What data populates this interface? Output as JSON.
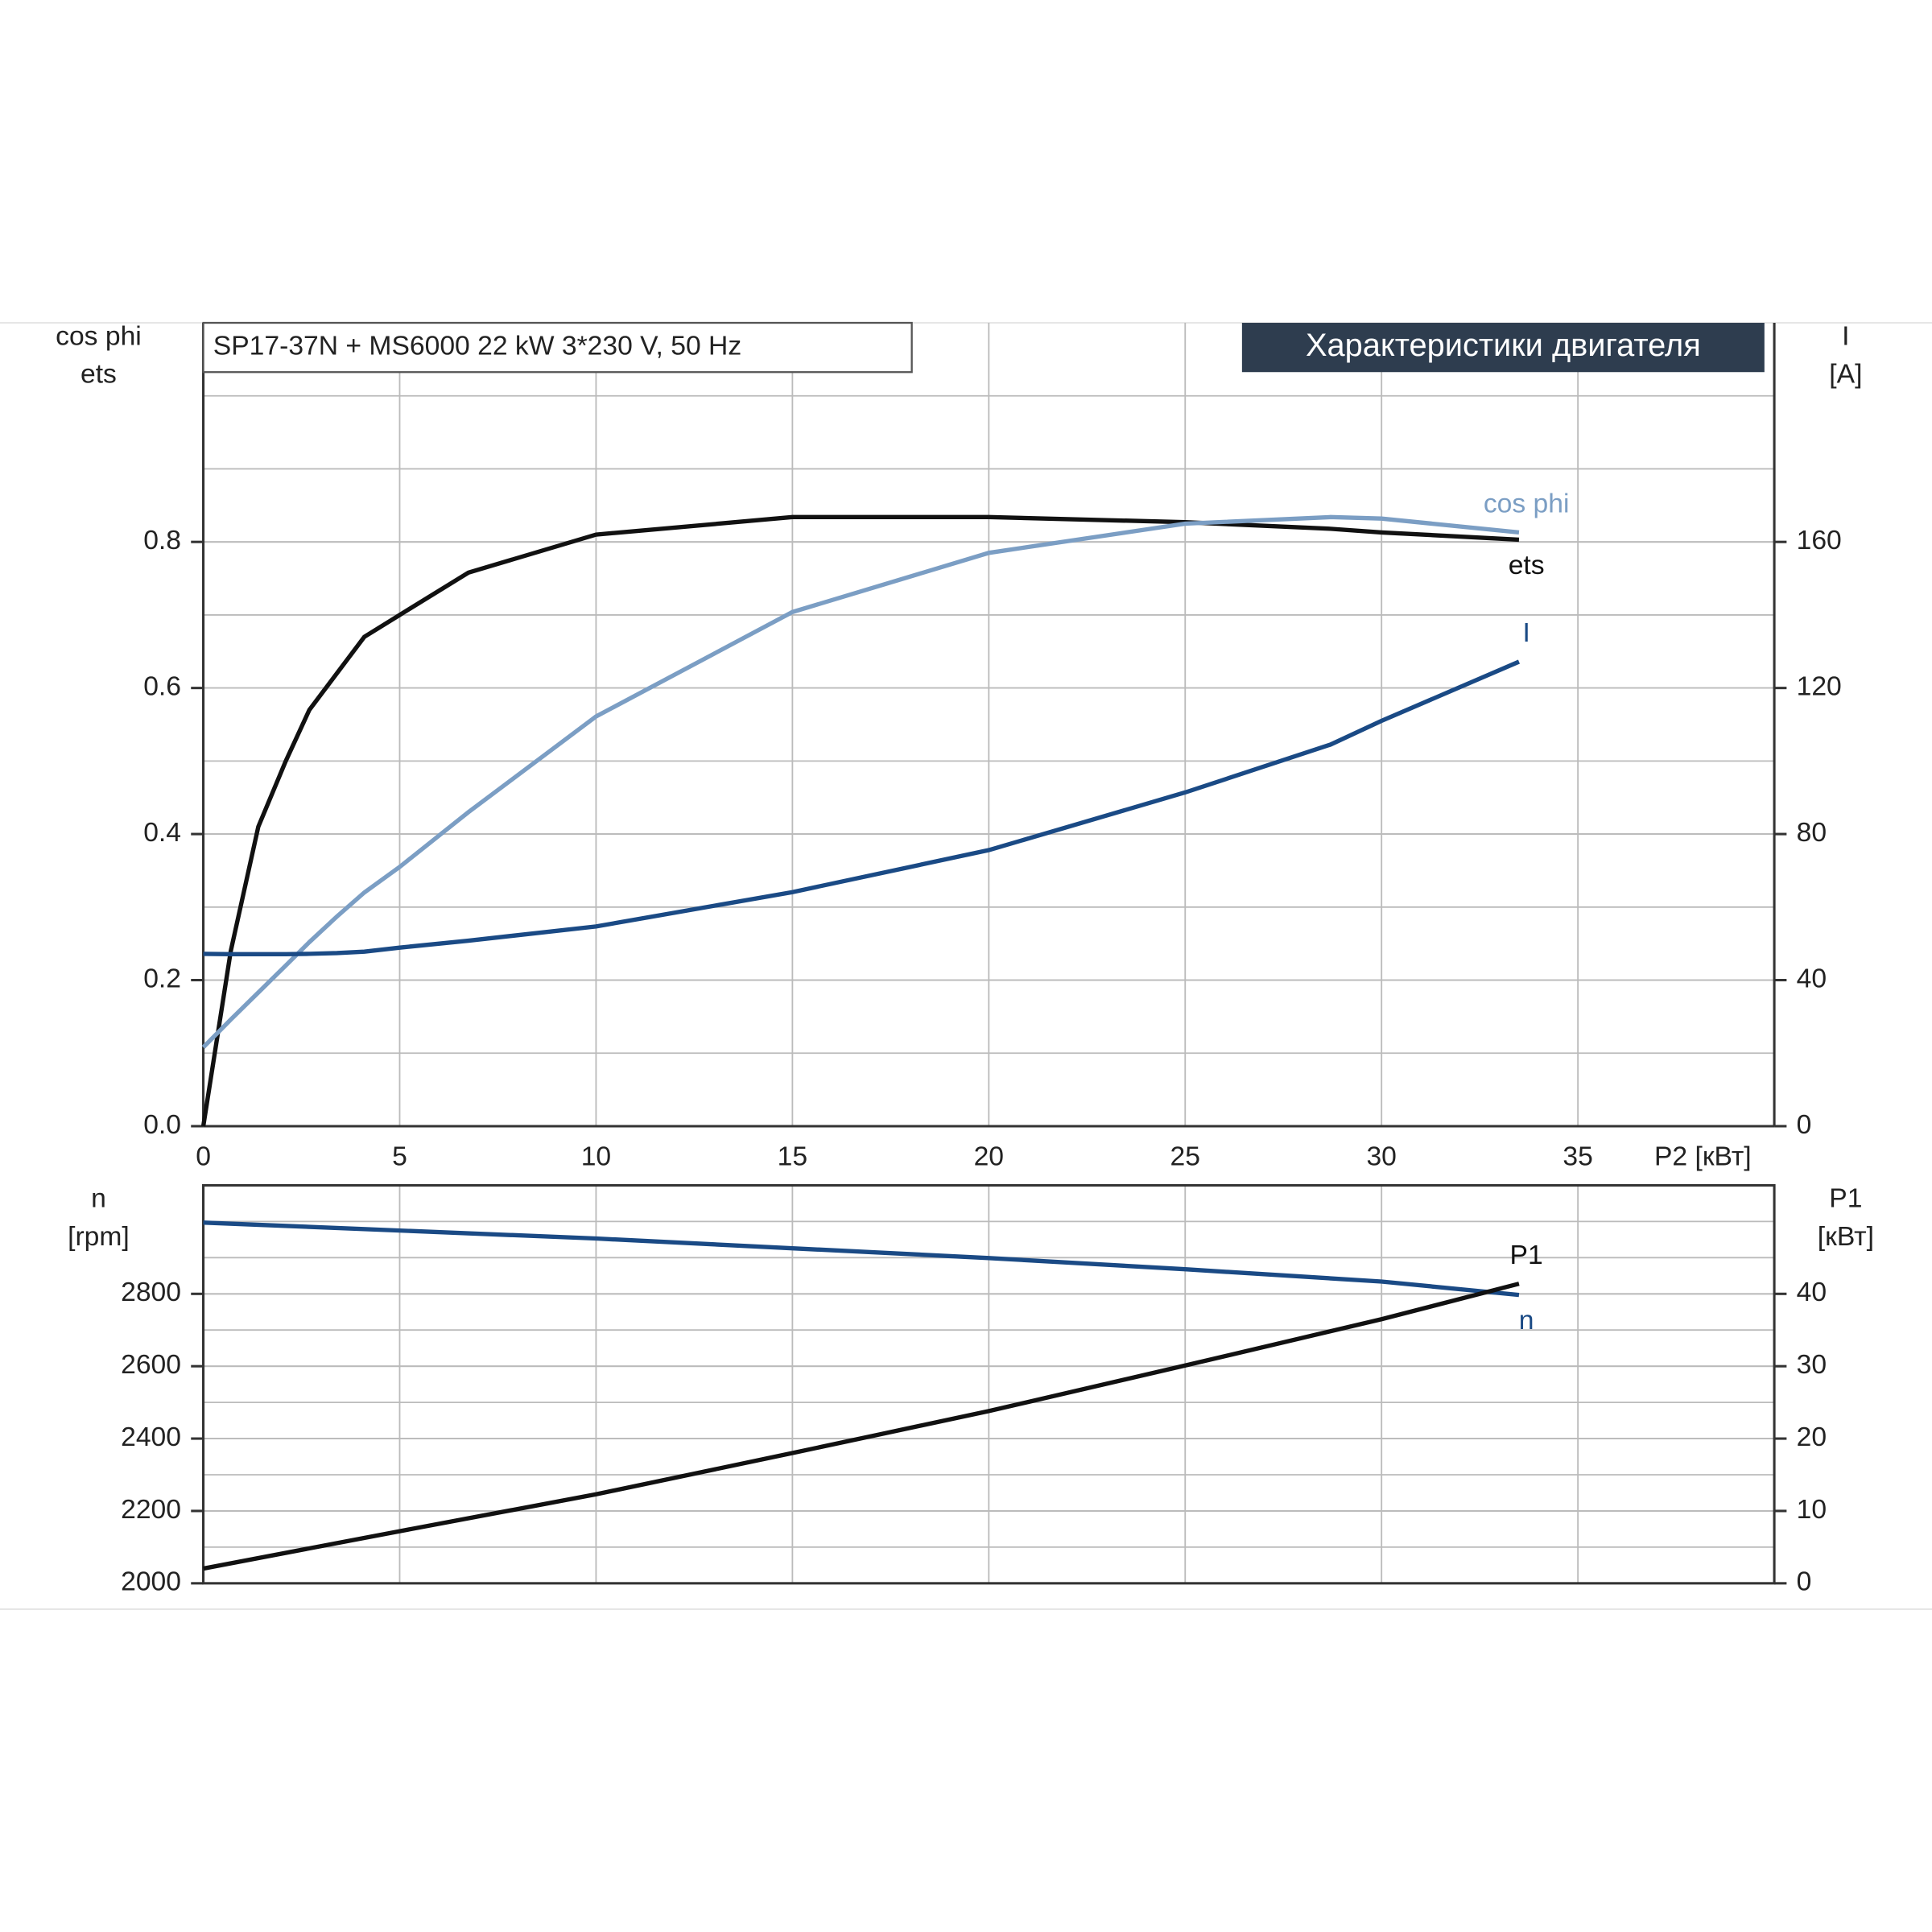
{
  "chart_data": [
    {
      "type": "line",
      "title": "SP17-37N + MS6000   22 kW   3*230 V, 50 Hz",
      "subtitle": "Характеристики двигателя",
      "ylabel": [
        "cos phi",
        "ets"
      ],
      "y2label": [
        "I",
        "[A]"
      ],
      "xlabel": "P2 [кВт]",
      "xlim": [
        0,
        40
      ],
      "xticks": [
        0,
        5,
        10,
        15,
        20,
        25,
        30,
        35
      ],
      "xtick_labels": true,
      "ylim": [
        0,
        1.1
      ],
      "yticks": [
        {
          "value": 0,
          "label": "0.0"
        },
        0.2,
        0.4,
        0.6,
        0.8
      ],
      "y2lim": [
        0,
        220
      ],
      "y2ticks": [
        0,
        40,
        80,
        120,
        160
      ],
      "grid": true,
      "minor_grid": true,
      "x": [
        0,
        0.7,
        1.4,
        2.1,
        2.7,
        3.4,
        4.1,
        5,
        6.75,
        10,
        15,
        20,
        25,
        28.7,
        30,
        33.5
      ],
      "series": [
        {
          "name": "ets",
          "color": "#111111",
          "label_pos": "below",
          "values": [
            0,
            0.24,
            0.41,
            0.5,
            0.57,
            0.62,
            0.67,
            0.7,
            0.758,
            0.81,
            0.834,
            0.834,
            0.827,
            0.818,
            0.813,
            0.803
          ]
        },
        {
          "name": "cos phi",
          "color": "#7b9ec4",
          "label_pos": "above",
          "values": [
            0.108,
            0.146,
            0.183,
            0.22,
            0.252,
            0.287,
            0.32,
            0.355,
            0.43,
            0.561,
            0.704,
            0.785,
            0.825,
            0.834,
            0.832,
            0.813
          ]
        },
        {
          "name": "I",
          "color": "#1a4a85",
          "label_pos": "above",
          "axis": "y2",
          "values": [
            47.2,
            47.1,
            47.1,
            47.1,
            47.2,
            47.4,
            47.8,
            48.9,
            50.8,
            54.7,
            64.1,
            75.6,
            91.4,
            104.5,
            111,
            127.2
          ]
        }
      ]
    },
    {
      "type": "line",
      "ylabel": [
        "n",
        "[rpm]"
      ],
      "y2label": [
        "P1",
        "[кВт]"
      ],
      "xlim": [
        0,
        40
      ],
      "xticks": [
        0,
        5,
        10,
        15,
        20,
        25,
        30,
        35
      ],
      "xtick_labels": false,
      "ylim": [
        2000,
        3100
      ],
      "yticks": [
        2000,
        2200,
        2400,
        2600,
        2800
      ],
      "y2lim": [
        0,
        55
      ],
      "y2ticks": [
        0,
        10,
        20,
        30,
        40
      ],
      "grid": true,
      "minor_grid": true,
      "x": [
        0,
        5,
        10,
        15,
        20,
        25,
        30,
        33.5
      ],
      "series": [
        {
          "name": "n",
          "color": "#1a4a85",
          "label_pos": "below",
          "values": [
            2997,
            2975,
            2953,
            2926,
            2899,
            2868,
            2834,
            2797
          ]
        },
        {
          "name": "P1",
          "color": "#111111",
          "label_pos": "above",
          "axis": "y2",
          "values": [
            2.04,
            7.2,
            12.3,
            18,
            23.8,
            30.1,
            36.5,
            41.4
          ]
        }
      ]
    }
  ]
}
